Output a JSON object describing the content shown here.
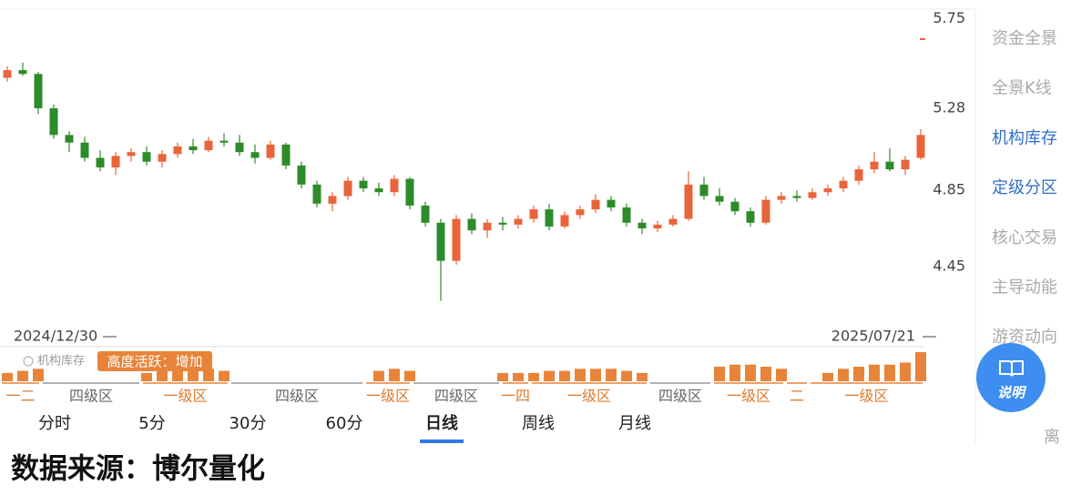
{
  "chart_data": {
    "type": "candlestick",
    "start_date": "2024/12/30",
    "end_date": "2025/07/21",
    "ylim": [
      4.03,
      5.8
    ],
    "yticks": [
      5.75,
      5.28,
      4.85,
      4.45
    ],
    "up_color": "#e8643a",
    "down_color": "#2e8b2a",
    "candles": [
      [
        5.44,
        5.5,
        5.42,
        5.48
      ],
      [
        5.48,
        5.52,
        5.45,
        5.46
      ],
      [
        5.46,
        5.47,
        5.25,
        5.28
      ],
      [
        5.28,
        5.3,
        5.12,
        5.14
      ],
      [
        5.14,
        5.16,
        5.05,
        5.1
      ],
      [
        5.1,
        5.13,
        5.0,
        5.02
      ],
      [
        5.02,
        5.06,
        4.95,
        4.97
      ],
      [
        4.97,
        5.05,
        4.93,
        5.03
      ],
      [
        5.03,
        5.07,
        5.0,
        5.05
      ],
      [
        5.05,
        5.08,
        4.98,
        5.0
      ],
      [
        5.0,
        5.06,
        4.97,
        5.04
      ],
      [
        5.04,
        5.1,
        5.02,
        5.08
      ],
      [
        5.08,
        5.12,
        5.04,
        5.06
      ],
      [
        5.06,
        5.13,
        5.05,
        5.11
      ],
      [
        5.11,
        5.15,
        5.08,
        5.1
      ],
      [
        5.1,
        5.14,
        5.03,
        5.05
      ],
      [
        5.05,
        5.09,
        4.99,
        5.02
      ],
      [
        5.02,
        5.11,
        5.01,
        5.09
      ],
      [
        5.09,
        5.1,
        4.96,
        4.98
      ],
      [
        4.98,
        5.0,
        4.86,
        4.88
      ],
      [
        4.88,
        4.9,
        4.76,
        4.78
      ],
      [
        4.78,
        4.84,
        4.74,
        4.82
      ],
      [
        4.82,
        4.92,
        4.8,
        4.9
      ],
      [
        4.9,
        4.92,
        4.84,
        4.86
      ],
      [
        4.86,
        4.89,
        4.82,
        4.84
      ],
      [
        4.84,
        4.93,
        4.82,
        4.91
      ],
      [
        4.91,
        4.92,
        4.75,
        4.77
      ],
      [
        4.77,
        4.79,
        4.66,
        4.68
      ],
      [
        4.68,
        4.7,
        4.27,
        4.48
      ],
      [
        4.48,
        4.72,
        4.46,
        4.7
      ],
      [
        4.7,
        4.73,
        4.62,
        4.64
      ],
      [
        4.64,
        4.7,
        4.6,
        4.68
      ],
      [
        4.68,
        4.71,
        4.64,
        4.67
      ],
      [
        4.67,
        4.72,
        4.65,
        4.7
      ],
      [
        4.7,
        4.77,
        4.68,
        4.75
      ],
      [
        4.75,
        4.78,
        4.64,
        4.66
      ],
      [
        4.66,
        4.74,
        4.65,
        4.72
      ],
      [
        4.72,
        4.77,
        4.7,
        4.75
      ],
      [
        4.75,
        4.83,
        4.73,
        4.8
      ],
      [
        4.8,
        4.82,
        4.74,
        4.76
      ],
      [
        4.76,
        4.78,
        4.66,
        4.68
      ],
      [
        4.68,
        4.7,
        4.62,
        4.65
      ],
      [
        4.65,
        4.69,
        4.63,
        4.67
      ],
      [
        4.67,
        4.72,
        4.66,
        4.7
      ],
      [
        4.7,
        4.95,
        4.69,
        4.88
      ],
      [
        4.88,
        4.92,
        4.8,
        4.82
      ],
      [
        4.82,
        4.86,
        4.77,
        4.79
      ],
      [
        4.79,
        4.81,
        4.72,
        4.74
      ],
      [
        4.74,
        4.76,
        4.66,
        4.68
      ],
      [
        4.68,
        4.82,
        4.67,
        4.8
      ],
      [
        4.8,
        4.84,
        4.78,
        4.82
      ],
      [
        4.82,
        4.85,
        4.79,
        4.81
      ],
      [
        4.81,
        4.86,
        4.8,
        4.84
      ],
      [
        4.84,
        4.88,
        4.82,
        4.86
      ],
      [
        4.86,
        4.92,
        4.84,
        4.9
      ],
      [
        4.9,
        4.98,
        4.88,
        4.96
      ],
      [
        4.96,
        5.05,
        4.94,
        5.0
      ],
      [
        5.0,
        5.07,
        4.95,
        4.96
      ],
      [
        4.96,
        5.03,
        4.93,
        5.01
      ],
      [
        5.02,
        5.17,
        5.01,
        5.14
      ]
    ],
    "activity": [
      4,
      5,
      6,
      null,
      null,
      null,
      null,
      null,
      null,
      4,
      6,
      7,
      7,
      6,
      5,
      null,
      null,
      null,
      null,
      null,
      null,
      null,
      null,
      null,
      5,
      6,
      5,
      null,
      null,
      null,
      null,
      null,
      4,
      4,
      4,
      5,
      5,
      6,
      6,
      6,
      5,
      4,
      null,
      null,
      null,
      null,
      7,
      8,
      8,
      7,
      6,
      null,
      null,
      4,
      6,
      7,
      8,
      8,
      9,
      14
    ],
    "zones": [
      {
        "label": "一二",
        "hot": true
      },
      {
        "label": "四级区",
        "hot": false
      },
      {
        "label": "一级区",
        "hot": true
      },
      {
        "label": "四级区",
        "hot": false
      },
      {
        "label": "一级区",
        "hot": true
      },
      {
        "label": "四级区",
        "hot": false
      },
      {
        "label": "一四",
        "hot": true
      },
      {
        "label": "一级区",
        "hot": true
      },
      {
        "label": "四级区",
        "hot": false
      },
      {
        "label": "一级区",
        "hot": true
      },
      {
        "label": "二",
        "hot": true
      },
      {
        "label": "一级区",
        "hot": true
      }
    ],
    "indicator_name": "机构库存",
    "badge": "高度活跃：增加"
  },
  "side_menu": [
    "资金全景",
    "全景K线",
    "机构库存",
    "定级分区",
    "核心交易",
    "主导动能",
    "游资动向",
    "离"
  ],
  "side_menu_active": [
    false,
    false,
    true,
    true,
    false,
    false,
    false,
    false
  ],
  "help_button": "说明",
  "tabs": [
    "分时",
    "5分",
    "30分",
    "60分",
    "日线",
    "周线",
    "月线"
  ],
  "active_tab": 4,
  "footer": "数据来源：博尔量化"
}
